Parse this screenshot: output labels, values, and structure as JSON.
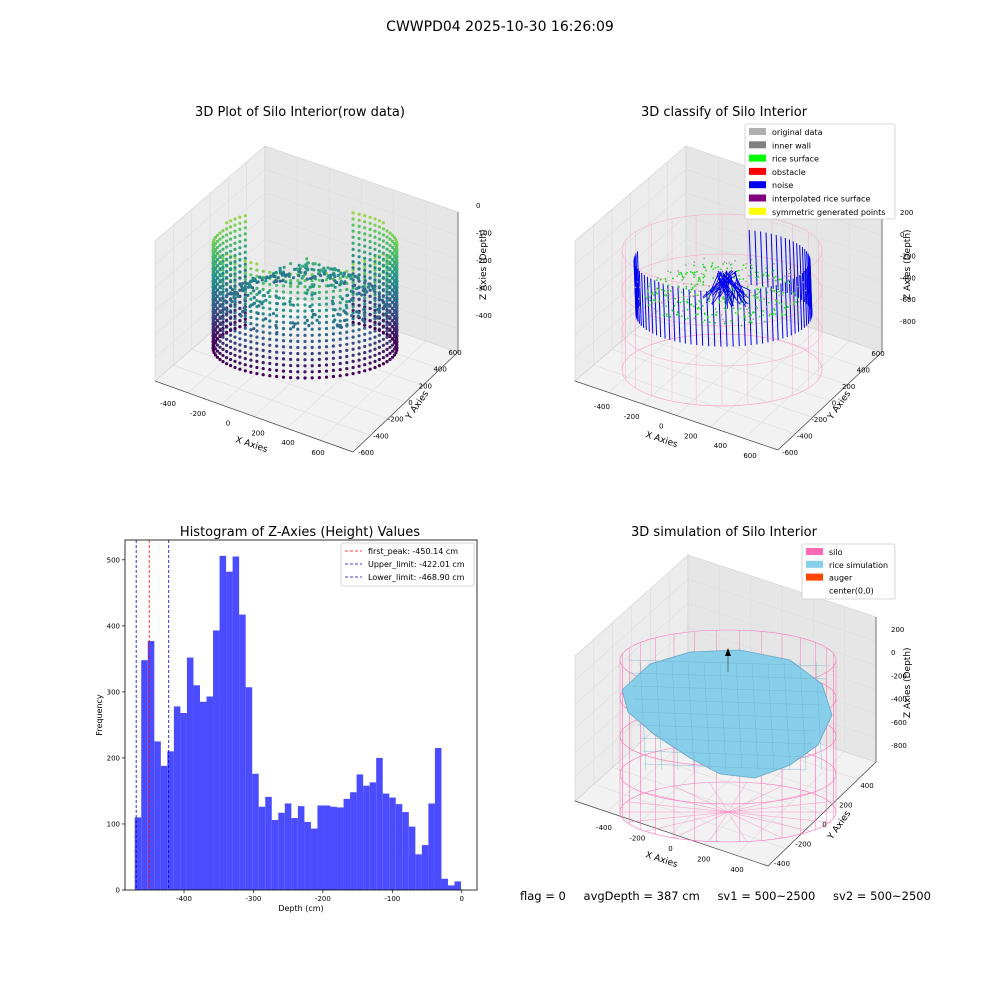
{
  "suptitle": "CWWPD04 2025-10-30 16:26:09",
  "chart_data": [
    {
      "type": "scatter",
      "title": "3D Plot of Silo Interior(row data)",
      "xlabel": "X Axies",
      "ylabel": "Y Axies",
      "zlabel": "Z Axies (Depth)",
      "x_ticks": [
        "-400",
        "-200",
        "0",
        "200",
        "400",
        "600"
      ],
      "y_ticks": [
        "-600",
        "-400",
        "-200",
        "0",
        "200",
        "400",
        "600"
      ],
      "z_ticks": [
        "0",
        "-100",
        "-200",
        "-300",
        "-400"
      ],
      "zlim": [
        -470,
        0
      ],
      "colormap": "viridis"
    },
    {
      "type": "scatter",
      "title": "3D classify of Silo Interior",
      "xlabel": "X Axies",
      "ylabel": "Y Axies",
      "zlabel": "Z Axies (Depth)",
      "x_ticks": [
        "-400",
        "-200",
        "0",
        "200",
        "400",
        "600"
      ],
      "y_ticks": [
        "-600",
        "-400",
        "-200",
        "0",
        "200",
        "400",
        "600"
      ],
      "z_ticks": [
        "200",
        "0",
        "-200",
        "-400",
        "-600",
        "-800"
      ],
      "legend_position": "top-right",
      "legend": [
        {
          "label": "original data",
          "color": "#b0b0b0"
        },
        {
          "label": "inner wall",
          "color": "#808080"
        },
        {
          "label": "rice surface",
          "color": "#00ff00"
        },
        {
          "label": "obstacle",
          "color": "#ff0000"
        },
        {
          "label": "noise",
          "color": "#0000ee"
        },
        {
          "label": "interpolated rice surface",
          "color": "#800080"
        },
        {
          "label": "symmetric generated points",
          "color": "#ffff00"
        }
      ]
    },
    {
      "type": "bar",
      "title": "Histogram of Z-Axies (Height) Values",
      "xlabel": "Depth (cm)",
      "ylabel": "Frequency",
      "xlim": [
        -485,
        22
      ],
      "ylim": [
        0,
        530
      ],
      "x_ticks": [
        -400,
        -300,
        -200,
        -100,
        0
      ],
      "y_ticks": [
        0,
        100,
        200,
        300,
        400,
        500
      ],
      "bin_start": -471,
      "bin_width": 9.4,
      "values": [
        110,
        348,
        377,
        225,
        188,
        210,
        278,
        268,
        352,
        310,
        285,
        293,
        393,
        506,
        482,
        505,
        417,
        307,
        176,
        126,
        141,
        106,
        117,
        131,
        109,
        127,
        103,
        93,
        128,
        128,
        126,
        125,
        138,
        148,
        175,
        158,
        163,
        200,
        146,
        140,
        130,
        118,
        96,
        54,
        68,
        131,
        215,
        17,
        7,
        13
      ],
      "bar_color": "#4b4bff",
      "legend_position": "top-right",
      "vlines": [
        {
          "label": "first_peak: -450.14 cm",
          "x": -450.14,
          "color": "#ff0000"
        },
        {
          "label": "Upper_limit: -422.01 cm",
          "x": -422.01,
          "color": "#0000cc"
        },
        {
          "label": "Lower_limit: -468.90 cm",
          "x": -468.9,
          "color": "#0000cc"
        }
      ]
    },
    {
      "type": "area",
      "title": "3D simulation of Silo Interior",
      "xlabel": "X Axies",
      "ylabel": "Y Axies",
      "zlabel": "Z Axies (Depth)",
      "x_ticks": [
        "-400",
        "-200",
        "0",
        "200",
        "400"
      ],
      "y_ticks": [
        "-400",
        "-200",
        "0",
        "200",
        "400"
      ],
      "z_ticks": [
        "200",
        "0",
        "-200",
        "-400",
        "-600",
        "-800"
      ],
      "legend_position": "top-right",
      "legend": [
        {
          "label": "silo",
          "color": "#ff69b4"
        },
        {
          "label": "rice simulation",
          "color": "#87ceeb"
        },
        {
          "label": "auger",
          "color": "#ff4500"
        },
        {
          "label": "center(0,0)",
          "color": "#ffffff"
        }
      ]
    }
  ],
  "footer": {
    "flag": "flag = 0",
    "avg_depth": "avgDepth = 387 cm",
    "sv1": "sv1 = 500~2500",
    "sv2": "sv2 = 500~2500"
  }
}
